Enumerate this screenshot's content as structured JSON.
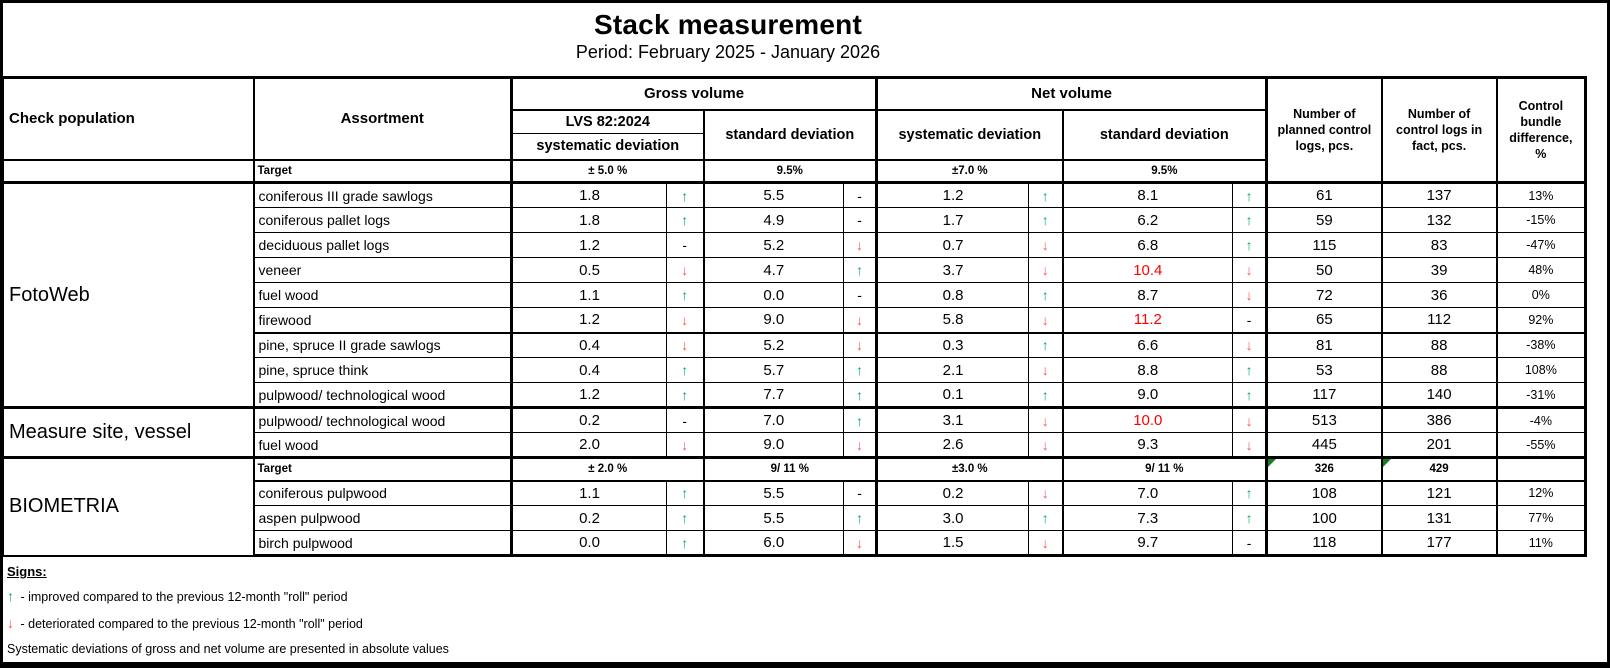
{
  "title": "Stack measurement",
  "period": "Period: February 2025 - January 2026",
  "header": {
    "check_population": "Check population",
    "assortment": "Assortment",
    "gross_volume": "Gross volume",
    "net_volume": "Net volume",
    "lvs": "LVS 82:2024",
    "gross_systematic": "systematic deviation",
    "gross_standard": "standard deviation",
    "net_systematic": "systematic deviation",
    "net_standard": "standard deviation",
    "planned_logs": "Number of planned control logs, pcs.",
    "fact_logs": "Number of control logs in fact, pcs.",
    "control_bundle": "Control bundle difference, %"
  },
  "targets_main": {
    "label": "Target",
    "gross_sys": "± 5.0 %",
    "gross_std": "9.5%",
    "net_sys": "±7.0 %",
    "net_std": "9.5%"
  },
  "sections": [
    {
      "name": "FotoWeb",
      "rows": [
        {
          "a": "coniferous III grade sawlogs",
          "gs": "1.8",
          "gsa": "↑",
          "gstd": "5.5",
          "gstda": "-",
          "ns": "1.2",
          "nsa": "↑",
          "nstd": "8.1",
          "nstda": "↑",
          "p": "61",
          "f": "137",
          "d": "13%"
        },
        {
          "a": "coniferous pallet logs",
          "gs": "1.8",
          "gsa": "↑",
          "gstd": "4.9",
          "gstda": "-",
          "ns": "1.7",
          "nsa": "↑",
          "nstd": "6.2",
          "nstda": "↑",
          "p": "59",
          "f": "132",
          "d": "-15%"
        },
        {
          "a": "deciduous pallet logs",
          "gs": "1.2",
          "gsa": "-",
          "gstd": "5.2",
          "gstda": "↓",
          "ns": "0.7",
          "nsa": "↓",
          "nstd": "6.8",
          "nstda": "↑",
          "p": "115",
          "f": "83",
          "d": "-47%"
        },
        {
          "a": "veneer",
          "gs": "0.5",
          "gsa": "↓",
          "gstd": "4.7",
          "gstda": "↑",
          "ns": "3.7",
          "nsa": "↓",
          "nstd": "10.4",
          "nstda": "↓",
          "p": "50",
          "f": "39",
          "d": "48%"
        },
        {
          "a": "fuel wood",
          "gs": "1.1",
          "gsa": "↑",
          "gstd": "0.0",
          "gstda": "-",
          "ns": "0.8",
          "nsa": "↑",
          "nstd": "8.7",
          "nstda": "↓",
          "p": "72",
          "f": "36",
          "d": "0%"
        },
        {
          "a": "firewood",
          "gs": "1.2",
          "gsa": "↓",
          "gstd": "9.0",
          "gstda": "↓",
          "ns": "5.8",
          "nsa": "↓",
          "nstd": "11.2",
          "nstda": "-",
          "p": "65",
          "f": "112",
          "d": "92%"
        },
        {
          "a": "pine, spruce II grade sawlogs",
          "gs": "0.4",
          "gsa": "↓",
          "gstd": "5.2",
          "gstda": "↓",
          "ns": "0.3",
          "nsa": "↑",
          "nstd": "6.6",
          "nstda": "↓",
          "p": "81",
          "f": "88",
          "d": "-38%"
        },
        {
          "a": "pine, spruce think",
          "gs": "0.4",
          "gsa": "↑",
          "gstd": "5.7",
          "gstda": "↑",
          "ns": "2.1",
          "nsa": "↓",
          "nstd": "8.8",
          "nstda": "↑",
          "p": "53",
          "f": "88",
          "d": "108%"
        },
        {
          "a": "pulpwood/ technological wood",
          "gs": "1.2",
          "gsa": "↑",
          "gstd": "7.7",
          "gstda": "↑",
          "ns": "0.1",
          "nsa": "↑",
          "nstd": "9.0",
          "nstda": "↑",
          "p": "117",
          "f": "140",
          "d": "-31%"
        }
      ]
    },
    {
      "name": "Measure site, vessel",
      "rows": [
        {
          "a": "pulpwood/ technological wood",
          "gs": "0.2",
          "gsa": "-",
          "gstd": "7.0",
          "gstda": "↑",
          "ns": "3.1",
          "nsa": "↓",
          "nstd": "10.0",
          "nstda": "↓",
          "p": "513",
          "f": "386",
          "d": "-4%"
        },
        {
          "a": "fuel wood",
          "gs": "2.0",
          "gsa": "↓",
          "gstd": "9.0",
          "gstda": "↓",
          "ns": "2.6",
          "nsa": "↓",
          "nstd": "9.3",
          "nstda": "↓",
          "p": "445",
          "f": "201",
          "d": "-55%"
        }
      ]
    },
    {
      "name": "BIOMETRIA",
      "target": {
        "label": "Target",
        "gross_sys": "± 2.0 %",
        "gross_std": "9/ 11 %",
        "net_sys": "±3.0 %",
        "net_std": "9/ 11 %",
        "planned": "326",
        "fact": "429"
      },
      "rows": [
        {
          "a": "coniferous pulpwood",
          "gs": "1.1",
          "gsa": "↑",
          "gstd": "5.5",
          "gstda": "-",
          "ns": "0.2",
          "nsa": "↓",
          "nstd": "7.0",
          "nstda": "↑",
          "p": "108",
          "f": "121",
          "d": "12%"
        },
        {
          "a": "aspen pulpwood",
          "gs": "0.2",
          "gsa": "↑",
          "gstd": "5.5",
          "gstda": "↑",
          "ns": "3.0",
          "nsa": "↑",
          "nstd": "7.3",
          "nstda": "↑",
          "p": "100",
          "f": "131",
          "d": "77%"
        },
        {
          "a": "birch pulpwood",
          "gs": "0.0",
          "gsa": "↑",
          "gstd": "6.0",
          "gstda": "↓",
          "ns": "1.5",
          "nsa": "↓",
          "nstd": "9.7",
          "nstda": "-",
          "p": "118",
          "f": "177",
          "d": "11%"
        }
      ]
    }
  ],
  "red_values": [
    "10.4",
    "11.2",
    "10.0"
  ],
  "legend": {
    "heading": "Signs:",
    "items": [
      {
        "arrow": "↑",
        "text": "- improved compared to the previous 12-month \"roll\" period"
      },
      {
        "arrow": "↓",
        "text": "- deteriorated compared to the previous 12-month \"roll\" period"
      }
    ],
    "note": "Systematic deviations of gross and net volume are presented in absolute values"
  },
  "colors": {
    "up": "#00b050",
    "down": "#ff5050",
    "alert": "#ff0000",
    "flag": "#1e7b1e"
  }
}
